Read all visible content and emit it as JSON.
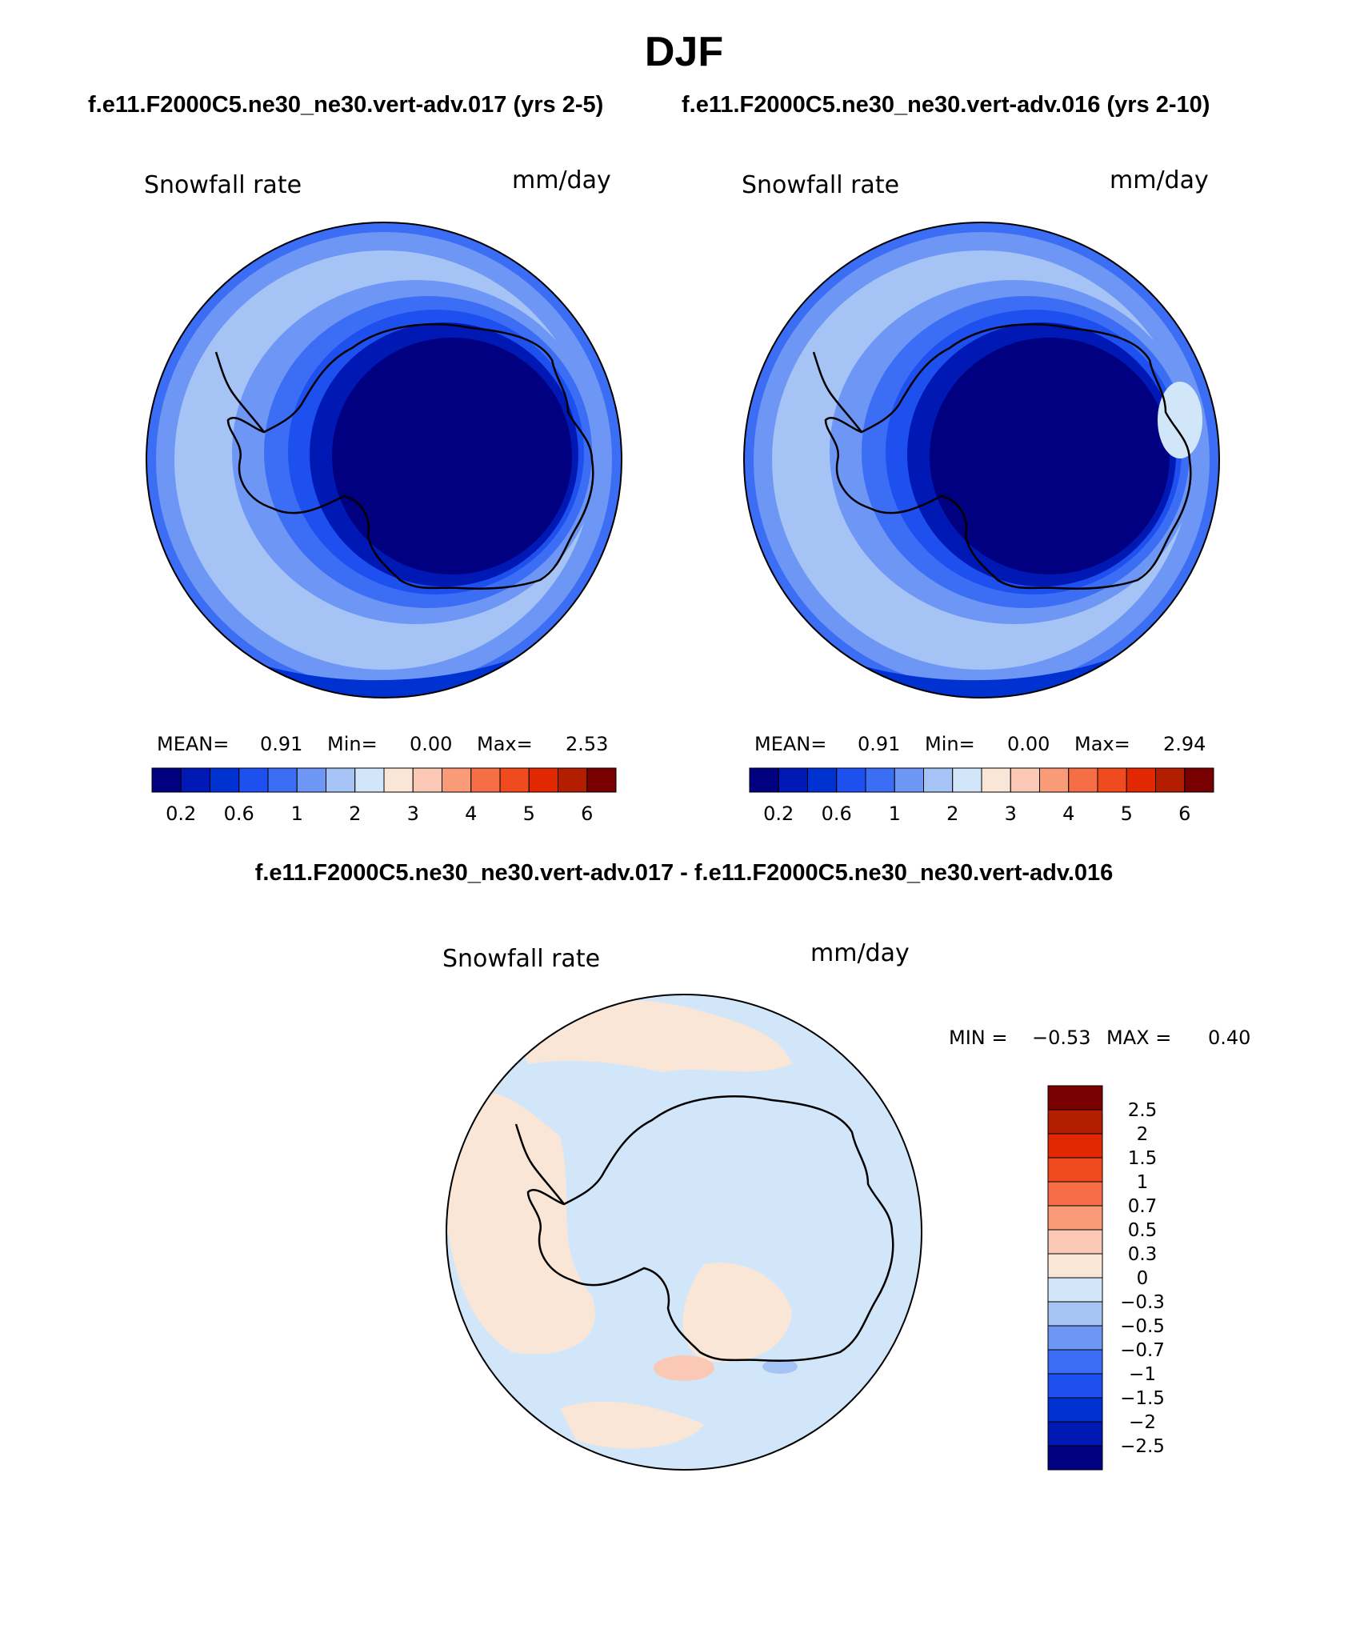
{
  "page": {
    "title": "DJF"
  },
  "colors": {
    "abs_scale": [
      "#000080",
      "#0019b4",
      "#0032d2",
      "#1e50f0",
      "#3c6ef5",
      "#6e96f5",
      "#a5c3f5",
      "#d2e6fa",
      "#fae6d7",
      "#fac8b4",
      "#fa9b78",
      "#f56e46",
      "#f04b1e",
      "#e12800",
      "#b41e00",
      "#780000"
    ],
    "diff_scale": [
      "#000080",
      "#0019b4",
      "#0032d2",
      "#1e50f0",
      "#3c6ef5",
      "#6e96f5",
      "#a5c3f5",
      "#d2e6fa",
      "#fae6d7",
      "#fac8b4",
      "#fa9b78",
      "#f56e46",
      "#f04b1e",
      "#e12800",
      "#b41e00",
      "#780000"
    ]
  },
  "chart_data": [
    {
      "type": "heatmap",
      "projection": "south-polar-stereographic",
      "case_title": "f.e11.F2000C5.ne30_ne30.vert-adv.017 (yrs 2-5)",
      "variable": "Snowfall rate",
      "units": "mm/day",
      "stats": {
        "mean_label": "MEAN=",
        "mean": "0.91",
        "min_label": "Min=",
        "min": "0.00",
        "max_label": "Max=",
        "max": "2.53"
      },
      "contour_levels": [
        "0.2",
        "0.6",
        "1",
        "2",
        "3",
        "4",
        "5",
        "6"
      ],
      "field_summary": {
        "antarctic_interior": 0.05,
        "coastal_ring": 0.4,
        "southern_ocean_band": 1.5,
        "mid_latitudes": 0.8
      }
    },
    {
      "type": "heatmap",
      "projection": "south-polar-stereographic",
      "case_title": "f.e11.F2000C5.ne30_ne30.vert-adv.016 (yrs 2-10)",
      "variable": "Snowfall rate",
      "units": "mm/day",
      "stats": {
        "mean_label": "MEAN=",
        "mean": "0.91",
        "min_label": "Min=",
        "min": "0.00",
        "max_label": "Max=",
        "max": "2.94"
      },
      "contour_levels": [
        "0.2",
        "0.6",
        "1",
        "2",
        "3",
        "4",
        "5",
        "6"
      ],
      "field_summary": {
        "antarctic_interior": 0.05,
        "coastal_ring": 0.4,
        "southern_ocean_band": 1.5,
        "mid_latitudes": 0.8
      }
    },
    {
      "type": "heatmap",
      "projection": "south-polar-stereographic",
      "diff_title": "f.e11.F2000C5.ne30_ne30.vert-adv.017 - f.e11.F2000C5.ne30_ne30.vert-adv.016",
      "variable": "Snowfall rate",
      "units": "mm/day",
      "stats": {
        "min_label": "MIN =",
        "min": "−0.53",
        "max_label": "MAX =",
        "max": "0.40"
      },
      "contour_levels": [
        "2.5",
        "2",
        "1.5",
        "1",
        "0.7",
        "0.5",
        "0.3",
        "0",
        "−0.3",
        "−0.5",
        "−0.7",
        "−1",
        "−1.5",
        "−2",
        "−2.5"
      ],
      "field_summary": {
        "dominant_range": "-0.3 to 0.3",
        "local_min": -0.53,
        "local_max": 0.4
      }
    }
  ]
}
